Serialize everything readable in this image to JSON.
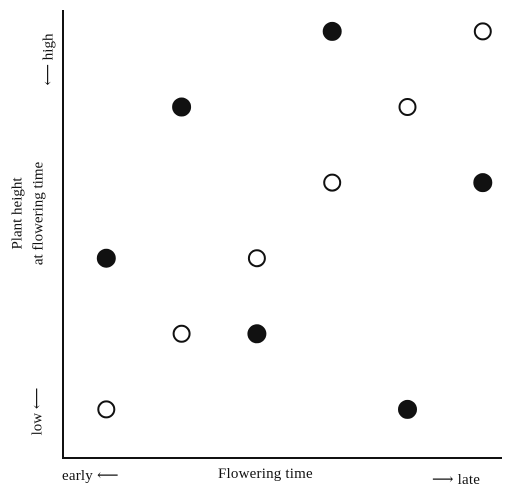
{
  "chart_data": {
    "type": "scatter",
    "title": "",
    "xlabel": "Flowering time",
    "ylabel_line1": "Plant height",
    "ylabel_line2": "at flowering time",
    "x_low_label": "early",
    "x_high_label": "late",
    "y_low_label": "low",
    "y_high_label": "high",
    "xlim": [
      0,
      6
    ],
    "ylim": [
      0,
      6
    ],
    "grid": false,
    "series": [
      {
        "marker": "filled",
        "color": "#111111",
        "points": [
          {
            "x": 1,
            "y": 3
          },
          {
            "x": 2,
            "y": 5
          },
          {
            "x": 3,
            "y": 2
          },
          {
            "x": 4,
            "y": 6
          },
          {
            "x": 5,
            "y": 1
          },
          {
            "x": 6,
            "y": 4
          }
        ]
      },
      {
        "marker": "open",
        "color": "#111111",
        "points": [
          {
            "x": 1,
            "y": 1
          },
          {
            "x": 2,
            "y": 2
          },
          {
            "x": 3,
            "y": 3
          },
          {
            "x": 4,
            "y": 4
          },
          {
            "x": 5,
            "y": 5
          },
          {
            "x": 6,
            "y": 6
          }
        ]
      }
    ]
  }
}
